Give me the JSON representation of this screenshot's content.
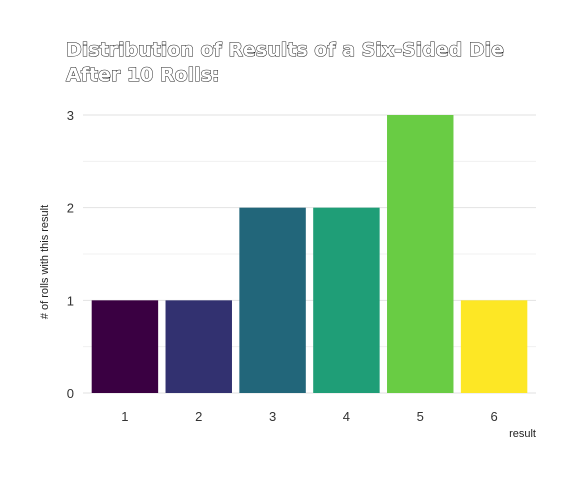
{
  "chart_data": {
    "type": "bar",
    "title_lines": [
      "Distribution of Results of a Six-Sided Die",
      "After 10 Rolls:"
    ],
    "xlabel": "result",
    "ylabel": "# of rolls with this result",
    "categories": [
      "1",
      "2",
      "3",
      "4",
      "5",
      "6"
    ],
    "values": [
      1,
      1,
      2,
      2,
      3,
      1
    ],
    "colors": [
      "#3a0042",
      "#323170",
      "#22667a",
      "#1f9e77",
      "#69cc44",
      "#fde725"
    ],
    "ylim": [
      0,
      3
    ],
    "yticks": [
      "0",
      "1",
      "2",
      "3"
    ],
    "grid": true,
    "legend": "none"
  }
}
